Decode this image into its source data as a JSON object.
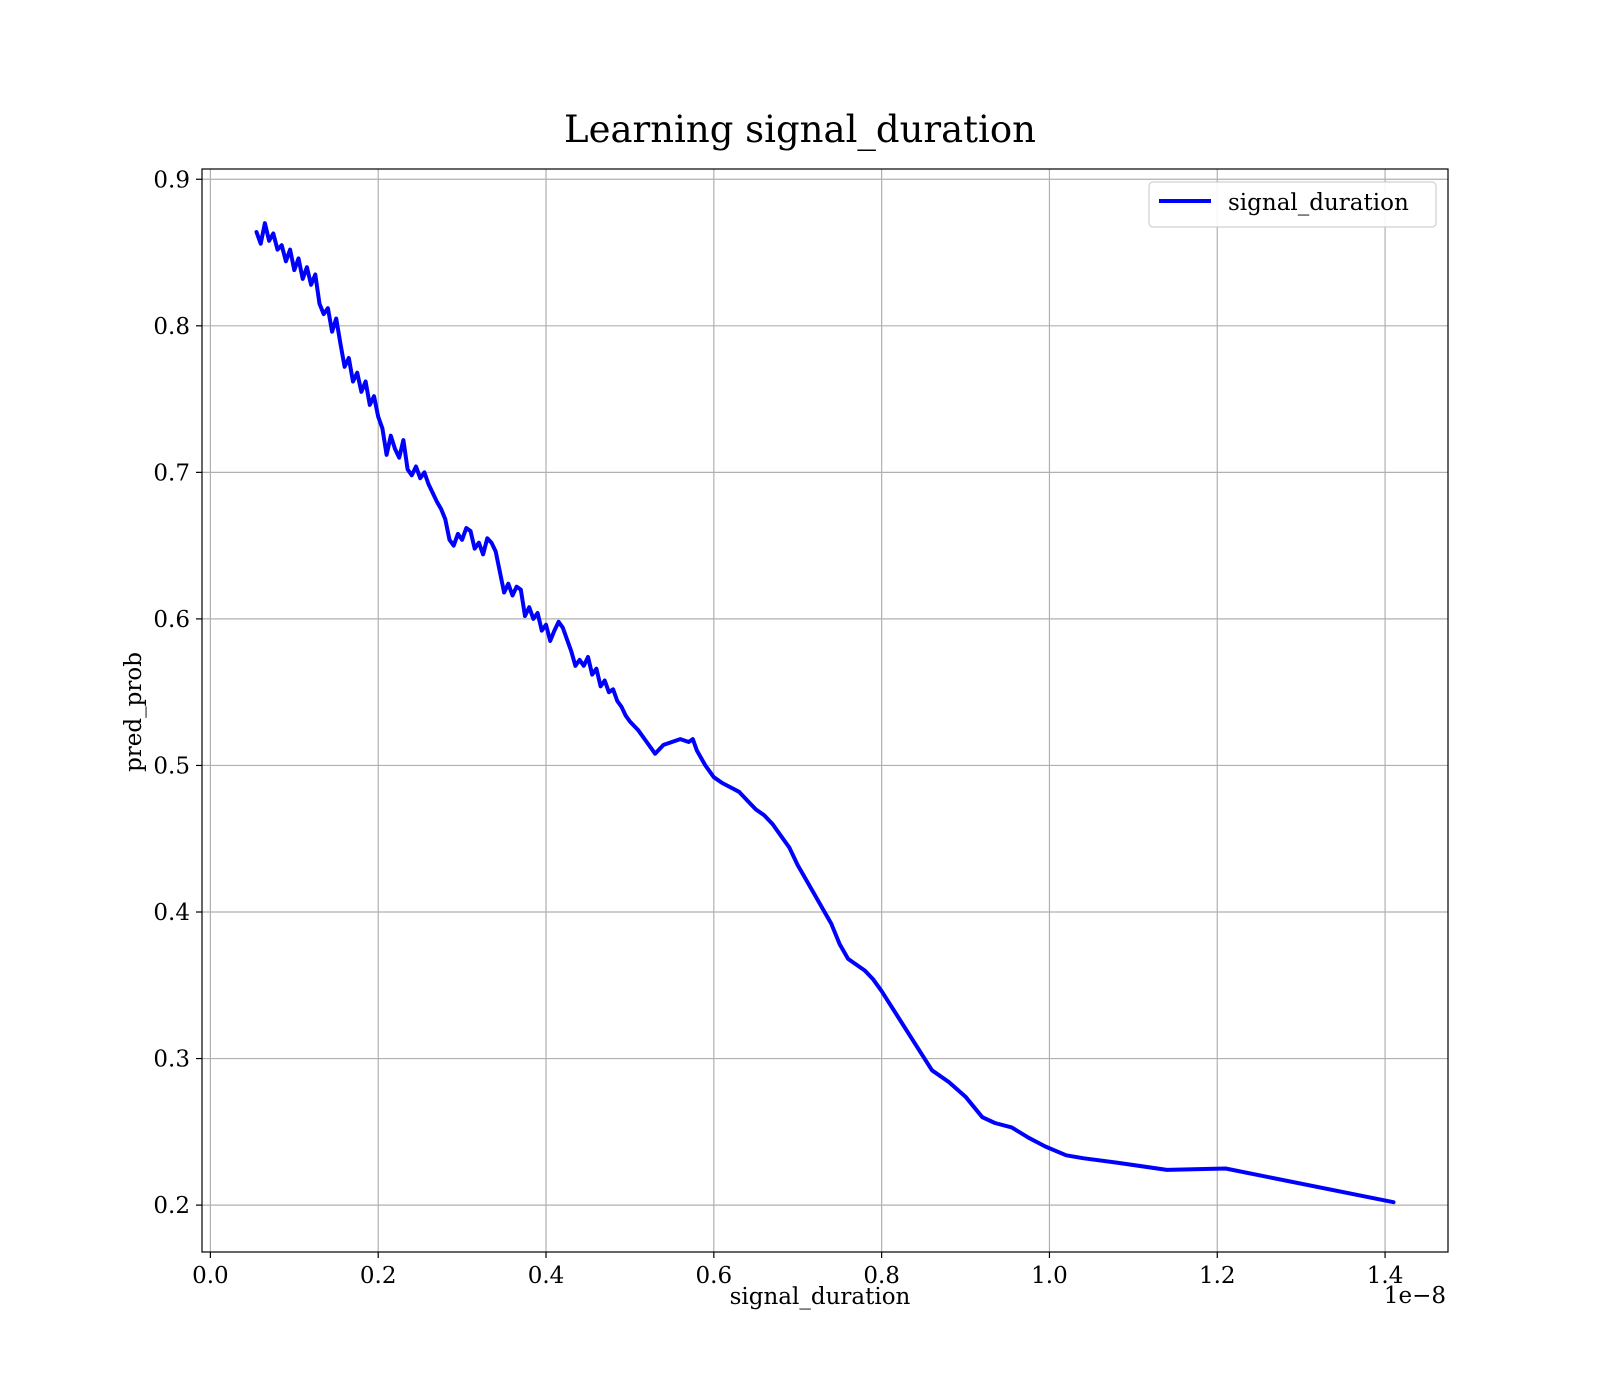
{
  "chart_data": {
    "type": "line",
    "title": "Learning signal_duration",
    "xlabel": "signal_duration",
    "ylabel": "pred_prob",
    "x_offset_text": "1e−8",
    "xlim": [
      -0.01,
      1.475
    ],
    "ylim": [
      0.168,
      0.907
    ],
    "xticks": [
      0.0,
      0.2,
      0.4,
      0.6,
      0.8,
      1.0,
      1.2,
      1.4
    ],
    "xtick_labels": [
      "0.0",
      "0.2",
      "0.4",
      "0.6",
      "0.8",
      "1.0",
      "1.2",
      "1.4"
    ],
    "yticks": [
      0.2,
      0.3,
      0.4,
      0.5,
      0.6,
      0.7,
      0.8,
      0.9
    ],
    "ytick_labels": [
      "0.2",
      "0.3",
      "0.4",
      "0.5",
      "0.6",
      "0.7",
      "0.8",
      "0.9"
    ],
    "grid": true,
    "legend_position": "top-right",
    "series": [
      {
        "name": "signal_duration",
        "color": "#0000ff",
        "x": [
          0.055,
          0.06,
          0.065,
          0.07,
          0.075,
          0.08,
          0.085,
          0.09,
          0.095,
          0.1,
          0.105,
          0.11,
          0.115,
          0.12,
          0.125,
          0.13,
          0.135,
          0.14,
          0.145,
          0.15,
          0.155,
          0.16,
          0.165,
          0.17,
          0.175,
          0.18,
          0.185,
          0.19,
          0.195,
          0.2,
          0.205,
          0.21,
          0.215,
          0.22,
          0.225,
          0.23,
          0.235,
          0.24,
          0.245,
          0.25,
          0.255,
          0.26,
          0.265,
          0.27,
          0.275,
          0.28,
          0.285,
          0.29,
          0.295,
          0.3,
          0.305,
          0.31,
          0.315,
          0.32,
          0.325,
          0.33,
          0.335,
          0.34,
          0.345,
          0.35,
          0.355,
          0.36,
          0.365,
          0.37,
          0.375,
          0.38,
          0.385,
          0.39,
          0.395,
          0.4,
          0.405,
          0.41,
          0.415,
          0.42,
          0.425,
          0.43,
          0.435,
          0.44,
          0.445,
          0.45,
          0.455,
          0.46,
          0.465,
          0.47,
          0.475,
          0.48,
          0.485,
          0.49,
          0.495,
          0.5,
          0.51,
          0.52,
          0.53,
          0.54,
          0.55,
          0.56,
          0.57,
          0.575,
          0.58,
          0.59,
          0.6,
          0.61,
          0.62,
          0.63,
          0.64,
          0.65,
          0.66,
          0.67,
          0.68,
          0.69,
          0.7,
          0.71,
          0.72,
          0.73,
          0.74,
          0.75,
          0.76,
          0.77,
          0.78,
          0.79,
          0.8,
          0.82,
          0.84,
          0.86,
          0.88,
          0.9,
          0.92,
          0.935,
          0.955,
          0.975,
          0.995,
          1.02,
          1.04,
          1.08,
          1.14,
          1.21,
          1.41
        ],
        "values": [
          0.864,
          0.856,
          0.87,
          0.858,
          0.863,
          0.852,
          0.855,
          0.844,
          0.852,
          0.838,
          0.846,
          0.832,
          0.84,
          0.828,
          0.835,
          0.815,
          0.808,
          0.812,
          0.796,
          0.805,
          0.788,
          0.772,
          0.778,
          0.762,
          0.768,
          0.755,
          0.762,
          0.746,
          0.752,
          0.738,
          0.73,
          0.712,
          0.725,
          0.716,
          0.71,
          0.722,
          0.702,
          0.698,
          0.704,
          0.696,
          0.7,
          0.692,
          0.686,
          0.68,
          0.675,
          0.668,
          0.654,
          0.65,
          0.658,
          0.654,
          0.662,
          0.66,
          0.648,
          0.652,
          0.644,
          0.655,
          0.652,
          0.646,
          0.632,
          0.618,
          0.624,
          0.616,
          0.622,
          0.62,
          0.602,
          0.608,
          0.6,
          0.604,
          0.592,
          0.596,
          0.585,
          0.592,
          0.598,
          0.594,
          0.586,
          0.578,
          0.568,
          0.572,
          0.568,
          0.574,
          0.562,
          0.566,
          0.554,
          0.558,
          0.55,
          0.552,
          0.544,
          0.54,
          0.534,
          0.53,
          0.524,
          0.516,
          0.508,
          0.514,
          0.516,
          0.518,
          0.516,
          0.518,
          0.51,
          0.5,
          0.492,
          0.488,
          0.485,
          0.482,
          0.476,
          0.47,
          0.466,
          0.46,
          0.452,
          0.444,
          0.432,
          0.422,
          0.412,
          0.402,
          0.392,
          0.378,
          0.368,
          0.364,
          0.36,
          0.354,
          0.346,
          0.328,
          0.31,
          0.292,
          0.284,
          0.274,
          0.26,
          0.256,
          0.253,
          0.246,
          0.24,
          0.234,
          0.232,
          0.229,
          0.224,
          0.225,
          0.202
        ]
      }
    ]
  }
}
